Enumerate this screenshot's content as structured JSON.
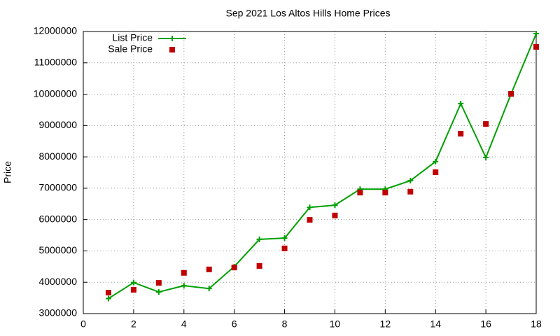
{
  "chart_data": {
    "type": "line",
    "title": "Sep 2021 Los Altos Hills Home Prices",
    "y_label": "Price",
    "x": [
      1,
      2,
      3,
      4,
      5,
      6,
      7,
      8,
      9,
      10,
      11,
      12,
      13,
      14,
      15,
      16,
      17,
      18
    ],
    "series": [
      {
        "name": "List Price",
        "color": "#00a000",
        "style": "linespoints",
        "values": [
          3480000,
          3990000,
          3690000,
          3890000,
          3800000,
          4500000,
          5370000,
          5410000,
          6390000,
          6460000,
          6970000,
          6970000,
          7240000,
          7850000,
          9700000,
          7980000,
          10010000,
          11930000
        ]
      },
      {
        "name": "Sale Price",
        "color": "#c00000",
        "style": "points",
        "values": [
          3670000,
          3760000,
          3980000,
          4300000,
          4410000,
          4470000,
          4520000,
          5080000,
          5990000,
          6130000,
          6860000,
          6860000,
          6890000,
          7510000,
          8740000,
          9050000,
          10010000,
          11510000
        ]
      }
    ],
    "xlim": [
      0,
      18
    ],
    "xticks": [
      0,
      2,
      4,
      6,
      8,
      10,
      12,
      14,
      16,
      18
    ],
    "ylim": [
      3000000,
      12000000
    ],
    "yticks": [
      3000000,
      4000000,
      5000000,
      6000000,
      7000000,
      8000000,
      9000000,
      10000000,
      11000000,
      12000000
    ],
    "grid": true,
    "legend": "top-left"
  }
}
